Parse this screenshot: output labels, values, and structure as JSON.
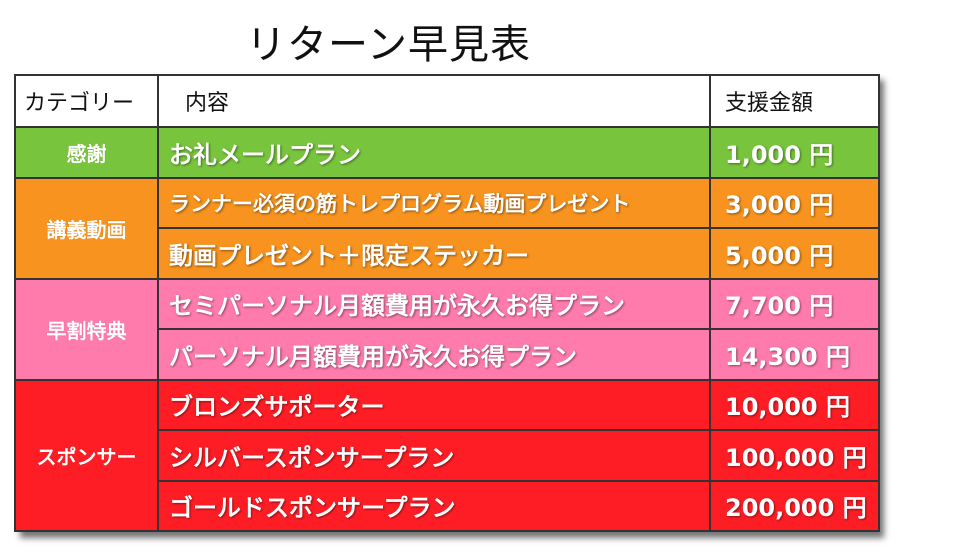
{
  "title": "リターン早見表",
  "headers": {
    "category": "カテゴリー",
    "content": "内容",
    "amount": "支援金額"
  },
  "colors": {
    "green": "#78c43c",
    "orange": "#f7931e",
    "pink": "#ff7bac",
    "red": "#ff1d25"
  },
  "groups": {
    "thanks": {
      "category": "感謝",
      "rows": [
        {
          "content": "お礼メールプラン",
          "amount": "1,000 円"
        }
      ]
    },
    "lecture": {
      "category": "講義動画",
      "rows": [
        {
          "content": "ランナー必須の筋トレプログラム動画プレゼント",
          "amount": "3,000 円"
        },
        {
          "content": "動画プレゼント＋限定ステッカー",
          "amount": "5,000 円"
        }
      ]
    },
    "early": {
      "category": "早割特典",
      "rows": [
        {
          "content": "セミパーソナル月額費用が永久お得プラン",
          "amount": "7,700 円"
        },
        {
          "content": "パーソナル月額費用が永久お得プラン",
          "amount": "14,300 円"
        }
      ]
    },
    "sponsor": {
      "category": "スポンサー",
      "rows": [
        {
          "content": "ブロンズサポーター",
          "amount": "10,000 円"
        },
        {
          "content": "シルバースポンサープラン",
          "amount": "100,000 円"
        },
        {
          "content": "ゴールドスポンサープラン",
          "amount": "200,000 円"
        }
      ]
    }
  }
}
